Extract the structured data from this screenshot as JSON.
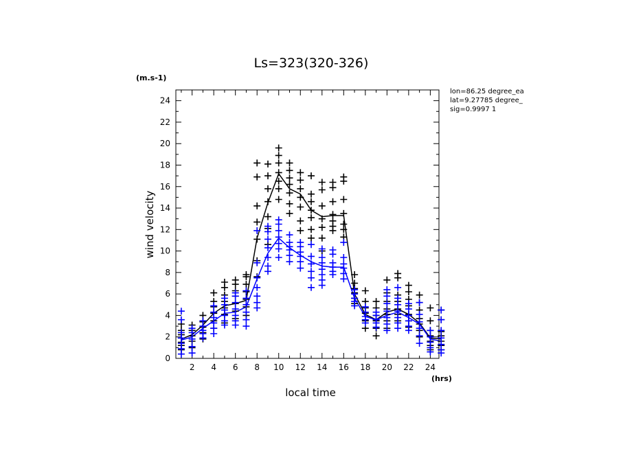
{
  "chart_data": {
    "type": "scatter",
    "title": "Ls=323(320-326)",
    "xlabel": "local time",
    "xunit": "(hrs)",
    "ylabel": "wind velocity",
    "yunit": "(m.s-1)",
    "xlim": [
      0.5,
      24.8
    ],
    "ylim": [
      0,
      25
    ],
    "xticks": [
      2,
      4,
      6,
      8,
      10,
      12,
      14,
      16,
      18,
      20,
      22,
      24
    ],
    "yticks": [
      0,
      2,
      4,
      6,
      8,
      10,
      12,
      14,
      16,
      18,
      20,
      22,
      24
    ],
    "grid": false,
    "annotations": [
      "lon=86.25 degree_ea",
      "lat=9.27785 degree_",
      "sig=0.9997 1"
    ],
    "series": [
      {
        "color": "#000000",
        "x": [
          1,
          2,
          3,
          4,
          5,
          6,
          7,
          8,
          9,
          10,
          11,
          12,
          13,
          14,
          15,
          16,
          17,
          18,
          19,
          20,
          21,
          22,
          23,
          24,
          25
        ],
        "mean": [
          1.8,
          2.2,
          3.1,
          4.2,
          4.9,
          5.1,
          5.4,
          11.2,
          14.5,
          17.2,
          15.8,
          15.3,
          13.8,
          13.2,
          13.3,
          13.3,
          6.0,
          4.1,
          3.6,
          4.3,
          4.6,
          4.1,
          3.3,
          1.9,
          1.8
        ],
        "points": [
          [
            0.8,
            1.2,
            1.5,
            1.9,
            2.2,
            2.6,
            3.2
          ],
          [
            1.0,
            1.6,
            2.1,
            2.6,
            3.1
          ],
          [
            1.8,
            2.4,
            2.9,
            3.4,
            4.0
          ],
          [
            2.8,
            3.5,
            4.2,
            4.8,
            5.3,
            6.1
          ],
          [
            3.3,
            4.1,
            4.7,
            5.3,
            5.9,
            6.6,
            7.1
          ],
          [
            3.7,
            4.4,
            5.1,
            5.8,
            6.3,
            6.9,
            7.3
          ],
          [
            4.0,
            4.8,
            5.5,
            6.2,
            6.9,
            7.6,
            7.8
          ],
          [
            7.6,
            9.1,
            11.1,
            12.7,
            14.2,
            16.9,
            18.2
          ],
          [
            10.6,
            12.1,
            13.2,
            14.6,
            15.8,
            17.0,
            18.1
          ],
          [
            14.8,
            15.8,
            16.5,
            17.3,
            18.2,
            18.9,
            19.6
          ],
          [
            13.5,
            14.4,
            15.4,
            16.2,
            16.8,
            17.5,
            18.2
          ],
          [
            11.9,
            12.8,
            14.1,
            15.0,
            15.8,
            16.6,
            17.3
          ],
          [
            11.2,
            12.0,
            13.1,
            13.8,
            14.6,
            15.3,
            17.0
          ],
          [
            10.0,
            11.2,
            12.2,
            13.0,
            14.2,
            15.7,
            16.4
          ],
          [
            11.9,
            12.3,
            12.8,
            13.4,
            14.6,
            15.9,
            16.4
          ],
          [
            11.3,
            12.0,
            12.5,
            13.5,
            14.8,
            16.5,
            16.9
          ],
          [
            5.1,
            5.6,
            6.1,
            6.5,
            7.0,
            7.8
          ],
          [
            2.8,
            3.5,
            4.2,
            4.7,
            5.3,
            6.3
          ],
          [
            2.1,
            2.8,
            3.5,
            4.0,
            4.7,
            5.3
          ],
          [
            2.8,
            3.5,
            4.1,
            4.6,
            5.3,
            6.1,
            7.3
          ],
          [
            3.5,
            4.1,
            4.6,
            5.3,
            5.9,
            7.5,
            7.9
          ],
          [
            2.9,
            3.5,
            4.1,
            4.9,
            5.5,
            6.2,
            6.8
          ],
          [
            2.0,
            2.6,
            3.2,
            3.7,
            4.5,
            5.2,
            5.9
          ],
          [
            0.8,
            1.2,
            1.6,
            2.1,
            2.6,
            3.5,
            4.7
          ],
          [
            0.8,
            1.2,
            1.6,
            2.1,
            2.5,
            3.6,
            4.5
          ]
        ]
      },
      {
        "color": "#0000ff",
        "x": [
          1,
          2,
          3,
          4,
          5,
          6,
          7,
          8,
          9,
          10,
          11,
          12,
          13,
          14,
          15,
          16,
          17,
          18,
          19,
          20,
          21,
          22,
          23,
          24,
          25
        ],
        "mean": [
          1.7,
          2.0,
          2.8,
          3.5,
          4.2,
          4.3,
          4.8,
          7.4,
          9.8,
          11.2,
          10.3,
          9.6,
          9.0,
          8.6,
          8.5,
          8.5,
          5.6,
          3.9,
          3.6,
          4.0,
          4.3,
          3.8,
          3.2,
          1.8,
          1.6
        ],
        "points": [
          [
            0.4,
            0.9,
            1.4,
            1.9,
            2.4,
            3.6,
            4.4
          ],
          [
            0.5,
            1.1,
            1.8,
            2.4,
            2.8
          ],
          [
            1.9,
            2.3,
            2.6,
            3.0,
            3.5
          ],
          [
            2.3,
            2.8,
            3.3,
            3.8,
            4.3,
            4.9
          ],
          [
            3.1,
            3.5,
            4.0,
            4.5,
            5.0,
            5.6
          ],
          [
            3.1,
            3.5,
            4.0,
            4.6,
            5.2,
            5.8,
            6.1
          ],
          [
            3.0,
            3.6,
            4.3,
            5.0,
            5.6,
            6.3
          ],
          [
            4.7,
            5.2,
            5.8,
            6.6,
            7.5,
            8.9,
            11.9
          ],
          [
            8.1,
            8.6,
            9.4,
            10.3,
            11.1,
            11.8,
            12.3
          ],
          [
            9.4,
            10.2,
            10.7,
            11.3,
            11.9,
            12.5,
            12.9
          ],
          [
            9.0,
            9.6,
            10.1,
            10.4,
            10.8,
            11.5
          ],
          [
            8.4,
            9.0,
            9.5,
            9.9,
            10.4,
            10.8
          ],
          [
            6.6,
            7.5,
            8.1,
            8.8,
            9.5,
            10.6
          ],
          [
            6.8,
            7.3,
            7.8,
            8.3,
            8.9,
            9.4,
            10.2
          ],
          [
            7.8,
            8.1,
            8.5,
            8.9,
            9.7,
            10.1
          ],
          [
            7.4,
            7.9,
            8.4,
            8.8,
            9.4,
            10.8
          ],
          [
            4.9,
            5.3,
            5.6,
            6.0,
            6.4
          ],
          [
            3.3,
            3.6,
            3.9,
            4.3,
            4.8
          ],
          [
            2.9,
            3.3,
            3.6,
            4.0,
            4.3
          ],
          [
            2.6,
            3.2,
            3.8,
            4.4,
            5.1,
            5.8,
            6.4
          ],
          [
            2.8,
            3.3,
            3.8,
            4.4,
            5.0,
            5.6,
            6.6
          ],
          [
            2.6,
            3.0,
            3.5,
            4.0,
            4.6,
            5.1
          ],
          [
            1.4,
            2.1,
            2.8,
            3.4,
            4.1,
            5.2
          ],
          [
            0.6,
            1.0,
            1.5,
            2.0,
            2.6
          ],
          [
            0.5,
            0.8,
            1.3,
            1.9,
            2.6,
            3.6,
            4.5
          ]
        ]
      }
    ]
  }
}
